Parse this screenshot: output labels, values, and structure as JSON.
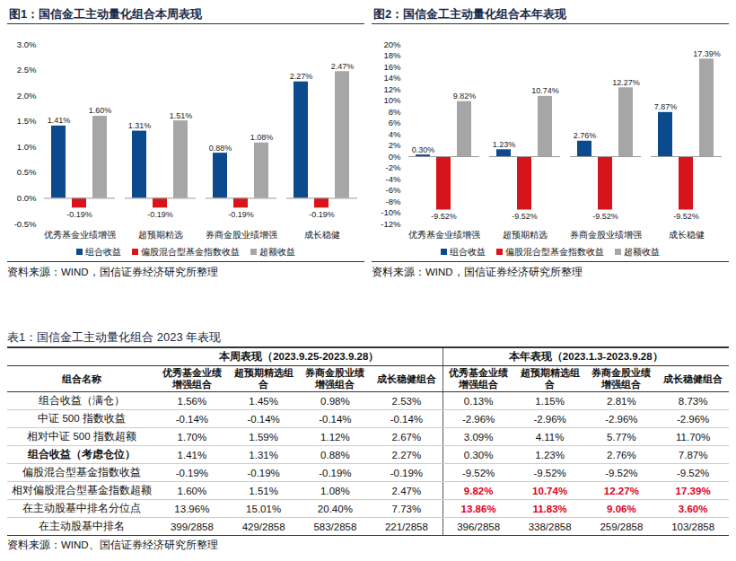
{
  "chart_data": [
    {
      "type": "bar",
      "title": "图1：国信金工主动量化组合本周表现",
      "categories": [
        "优秀基金业绩增强",
        "超预期精选",
        "券商金股业绩增强",
        "成长稳健"
      ],
      "series": [
        {
          "name": "组合收益",
          "color": "#0b4a8c",
          "values": [
            1.41,
            1.31,
            0.88,
            2.27
          ],
          "value_labels": [
            "1.41%",
            "1.31%",
            "0.88%",
            "2.27%"
          ]
        },
        {
          "name": "偏股混合型基金指数收益",
          "color": "#d7141a",
          "values": [
            -0.19,
            -0.19,
            -0.19,
            -0.19
          ],
          "value_labels": [
            "-0.19%",
            "-0.19%",
            "-0.19%",
            "-0.19%"
          ]
        },
        {
          "name": "超额收益",
          "color": "#a6a6a6",
          "values": [
            1.6,
            1.51,
            1.08,
            2.47
          ],
          "value_labels": [
            "1.60%",
            "1.51%",
            "1.08%",
            "2.47%"
          ]
        }
      ],
      "ylim": [
        -0.5,
        3.0
      ],
      "yticks": [
        {
          "value": -0.5,
          "label": "-0.5%"
        },
        {
          "value": 0,
          "label": "0.0%"
        },
        {
          "value": 0.5,
          "label": "0.5%"
        },
        {
          "value": 1.0,
          "label": "1.0%"
        },
        {
          "value": 1.5,
          "label": "1.5%"
        },
        {
          "value": 2.0,
          "label": "2.0%"
        },
        {
          "value": 2.5,
          "label": "2.5%"
        },
        {
          "value": 3.0,
          "label": "3.0%"
        }
      ],
      "grid": false,
      "legend": "bottom",
      "data_labels": true,
      "source": "资料来源：WIND，国信证券经济研究所整理"
    },
    {
      "type": "bar",
      "title": "图2：国信金工主动量化组合本年表现",
      "categories": [
        "优秀基金业绩增强",
        "超预期精选",
        "券商金股业绩增强",
        "成长稳健"
      ],
      "series": [
        {
          "name": "组合收益",
          "color": "#0b4a8c",
          "values": [
            0.3,
            1.23,
            2.76,
            7.87
          ],
          "value_labels": [
            "0.30%",
            "1.23%",
            "2.76%",
            "7.87%"
          ]
        },
        {
          "name": "偏股混合型基金指数收益",
          "color": "#d7141a",
          "values": [
            -9.52,
            -9.52,
            -9.52,
            -9.52
          ],
          "value_labels": [
            "-9.52%",
            "-9.52%",
            "-9.52%",
            "-9.52%"
          ]
        },
        {
          "name": "超额收益",
          "color": "#a6a6a6",
          "values": [
            9.82,
            10.74,
            12.27,
            17.39
          ],
          "value_labels": [
            "9.82%",
            "10.74%",
            "12.27%",
            "17.39%"
          ]
        }
      ],
      "ylim": [
        -12,
        20
      ],
      "yticks": [
        {
          "value": -12,
          "label": "-12%"
        },
        {
          "value": -10,
          "label": "-10%"
        },
        {
          "value": -8,
          "label": "-8%"
        },
        {
          "value": -6,
          "label": "-6%"
        },
        {
          "value": -4,
          "label": "-4%"
        },
        {
          "value": -2,
          "label": "-2%"
        },
        {
          "value": 0,
          "label": "0%"
        },
        {
          "value": 2,
          "label": "2%"
        },
        {
          "value": 4,
          "label": "4%"
        },
        {
          "value": 6,
          "label": "6%"
        },
        {
          "value": 8,
          "label": "8%"
        },
        {
          "value": 10,
          "label": "10%"
        },
        {
          "value": 12,
          "label": "12%"
        },
        {
          "value": 14,
          "label": "14%"
        },
        {
          "value": 16,
          "label": "16%"
        },
        {
          "value": 18,
          "label": "18%"
        },
        {
          "value": 20,
          "label": "20%"
        }
      ],
      "grid": false,
      "legend": "bottom",
      "data_labels": true,
      "source": "资料来源：WIND，国信证券经济研究所整理"
    }
  ],
  "table": {
    "title": "表1：国信金工主动量化组合 2023 年表现",
    "groups": [
      "本周表现（2023.9.25-2023.9.28）",
      "本年表现（2023.1.3-2023.9.28）"
    ],
    "corner": "组合名称",
    "columns": [
      "优秀基金业绩增强组合",
      "超预期精选组合",
      "券商金股业绩增强组合",
      "成长稳健组合",
      "优秀基金业绩增强组合",
      "超预期精选组合",
      "券商金股业绩增强组合",
      "成长稳健组合"
    ],
    "rows": [
      {
        "label": "组合收益（满仓）",
        "cells": [
          "1.56%",
          "1.45%",
          "0.98%",
          "2.53%",
          "0.13%",
          "1.15%",
          "2.81%",
          "8.73%"
        ]
      },
      {
        "label": "中证 500 指数收益",
        "cells": [
          "-0.14%",
          "-0.14%",
          "-0.14%",
          "-0.14%",
          "-2.96%",
          "-2.96%",
          "-2.96%",
          "-2.96%"
        ]
      },
      {
        "label": "相对中证 500 指数超额",
        "cells": [
          "1.70%",
          "1.59%",
          "1.12%",
          "2.67%",
          "3.09%",
          "4.11%",
          "5.77%",
          "11.70%"
        ]
      },
      {
        "label": "组合收益（考虑仓位）",
        "cells": [
          "1.41%",
          "1.31%",
          "0.88%",
          "2.27%",
          "0.30%",
          "1.23%",
          "2.76%",
          "7.87%"
        ]
      },
      {
        "label": "偏股混合型基金指数收益",
        "cells": [
          "-0.19%",
          "-0.19%",
          "-0.19%",
          "-0.19%",
          "-9.52%",
          "-9.52%",
          "-9.52%",
          "-9.52%"
        ]
      },
      {
        "label": "相对偏股混合型基金指数超额",
        "cells": [
          "1.60%",
          "1.51%",
          "1.08%",
          "2.47%",
          "9.82%",
          "10.74%",
          "12.27%",
          "17.39%"
        ]
      },
      {
        "label": "在主动股基中排名分位点",
        "cells": [
          "13.96%",
          "15.01%",
          "20.40%",
          "7.73%",
          "13.86%",
          "11.83%",
          "9.06%",
          "3.60%"
        ]
      },
      {
        "label": "在主动股基中排名",
        "cells": [
          "399/2858",
          "429/2858",
          "583/2858",
          "221/2858",
          "396/2858",
          "338/2858",
          "259/2858",
          "103/2858"
        ]
      }
    ],
    "source": "资料来源：WIND、国信证券经济研究所整理"
  }
}
